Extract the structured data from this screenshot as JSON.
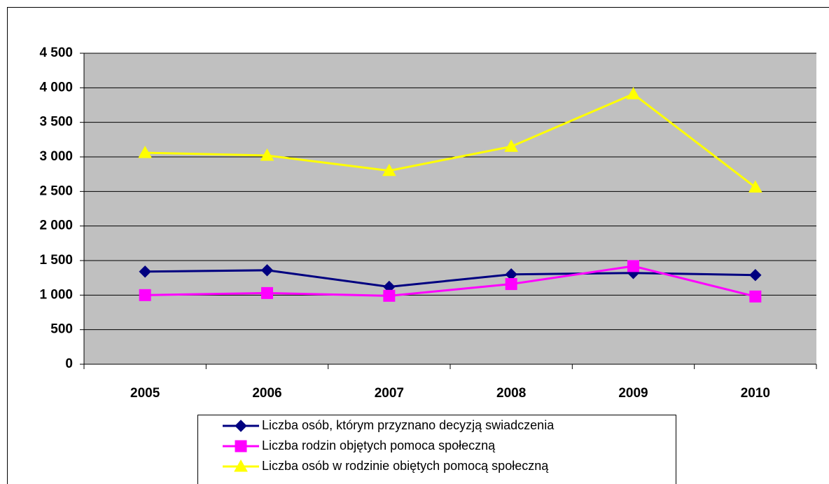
{
  "chart_data": {
    "type": "line",
    "categories": [
      "2005",
      "2006",
      "2007",
      "2008",
      "2009",
      "2010"
    ],
    "series": [
      {
        "name": "Liczba osób, którym przyznano decyzją swiadczenia",
        "color": "#000080",
        "marker": "diamond",
        "values": [
          1340,
          1360,
          1120,
          1300,
          1320,
          1290
        ]
      },
      {
        "name": "Liczba rodzin objętych pomoca społeczną",
        "color": "#ff00ff",
        "marker": "square",
        "values": [
          1000,
          1030,
          990,
          1160,
          1420,
          980
        ]
      },
      {
        "name": "Liczba osób w rodzinie obiętych pomocą społeczną",
        "color": "#ffff00",
        "marker": "triangle",
        "values": [
          3060,
          3020,
          2800,
          3150,
          3910,
          2560
        ]
      }
    ],
    "ylim": [
      0,
      4500
    ],
    "yticks": [
      0,
      500,
      {
        "value": 1000,
        "label": "1 000"
      },
      {
        "value": 1500,
        "label": "1 500"
      },
      {
        "value": 2000,
        "label": "2 000"
      },
      {
        "value": 2500,
        "label": "2 500"
      },
      {
        "value": 3000,
        "label": "3 000"
      },
      {
        "value": 3500,
        "label": "3 500"
      },
      {
        "value": 4000,
        "label": "4 000"
      },
      {
        "value": 4500,
        "label": "4 500"
      }
    ],
    "grid": true,
    "legend": "bottom",
    "plot_background": "#c0c0c0"
  }
}
